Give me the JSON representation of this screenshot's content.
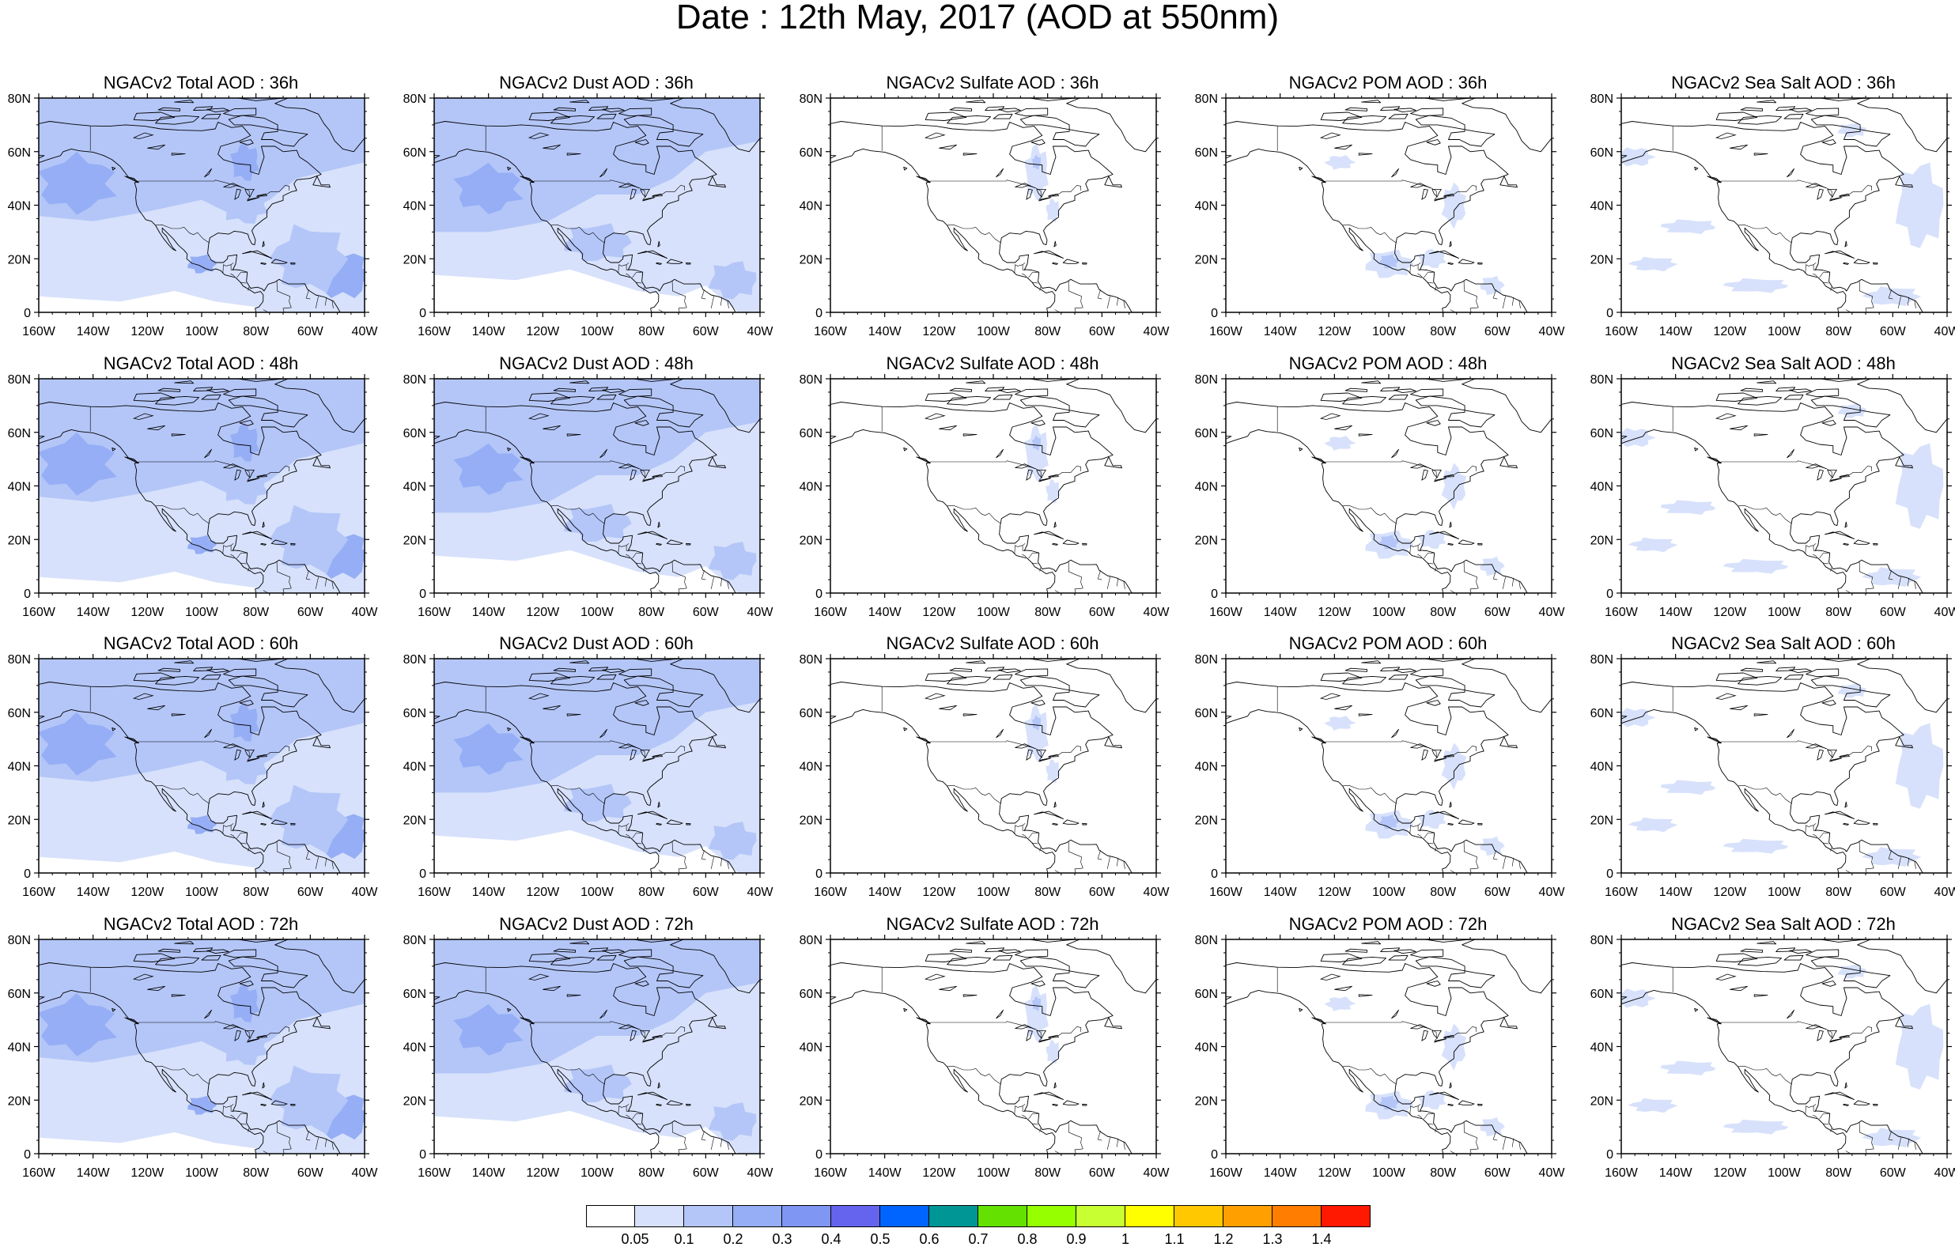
{
  "title": "Date : 12th May, 2017 (AOD at 550nm)",
  "lat_ticks": [
    "80N",
    "60N",
    "40N",
    "20N",
    "0"
  ],
  "lon_ticks": [
    "160W",
    "140W",
    "120W",
    "100W",
    "80W",
    "60W",
    "40W"
  ],
  "rows": [
    {
      "hour": "36h",
      "titles": [
        "NGACv2 Total AOD : 36h",
        "NGACv2 Dust AOD : 36h",
        "NGACv2 Sulfate AOD : 36h",
        "NGACv2 POM AOD : 36h",
        "NGACv2 Sea Salt AOD : 36h"
      ]
    },
    {
      "hour": "48h",
      "titles": [
        "NGACv2 Total AOD : 48h",
        "NGACv2 Dust AOD : 48h",
        "NGACv2 Sulfate AOD : 48h",
        "NGACv2 POM AOD : 48h",
        "NGACv2 Sea Salt AOD : 48h"
      ]
    },
    {
      "hour": "60h",
      "titles": [
        "NGACv2 Total AOD : 60h",
        "NGACv2 Dust AOD : 60h",
        "NGACv2 Sulfate AOD : 60h",
        "NGACv2 POM AOD : 60h",
        "NGACv2 Sea Salt AOD : 60h"
      ]
    },
    {
      "hour": "72h",
      "titles": [
        "NGACv2 Total AOD : 72h",
        "NGACv2 Dust AOD : 72h",
        "NGACv2 Sulfate AOD : 72h",
        "NGACv2 POM AOD : 72h",
        "NGACv2 Sea Salt  AOD : 72h"
      ]
    }
  ],
  "colorbar": {
    "labels": [
      "0.05",
      "0.1",
      "0.2",
      "0.3",
      "0.4",
      "0.5",
      "0.6",
      "0.7",
      "0.8",
      "0.9",
      "1",
      "1.1",
      "1.2",
      "1.3",
      "1.4"
    ],
    "colors": [
      "#ffffff",
      "#d7e1fb",
      "#b4c6f8",
      "#95aef5",
      "#7f96f2",
      "#6464ee",
      "#0064ff",
      "#009696",
      "#64e100",
      "#96ff00",
      "#c8ff32",
      "#ffff00",
      "#ffc800",
      "#ffa000",
      "#ff7d00",
      "#ff1900"
    ]
  }
}
